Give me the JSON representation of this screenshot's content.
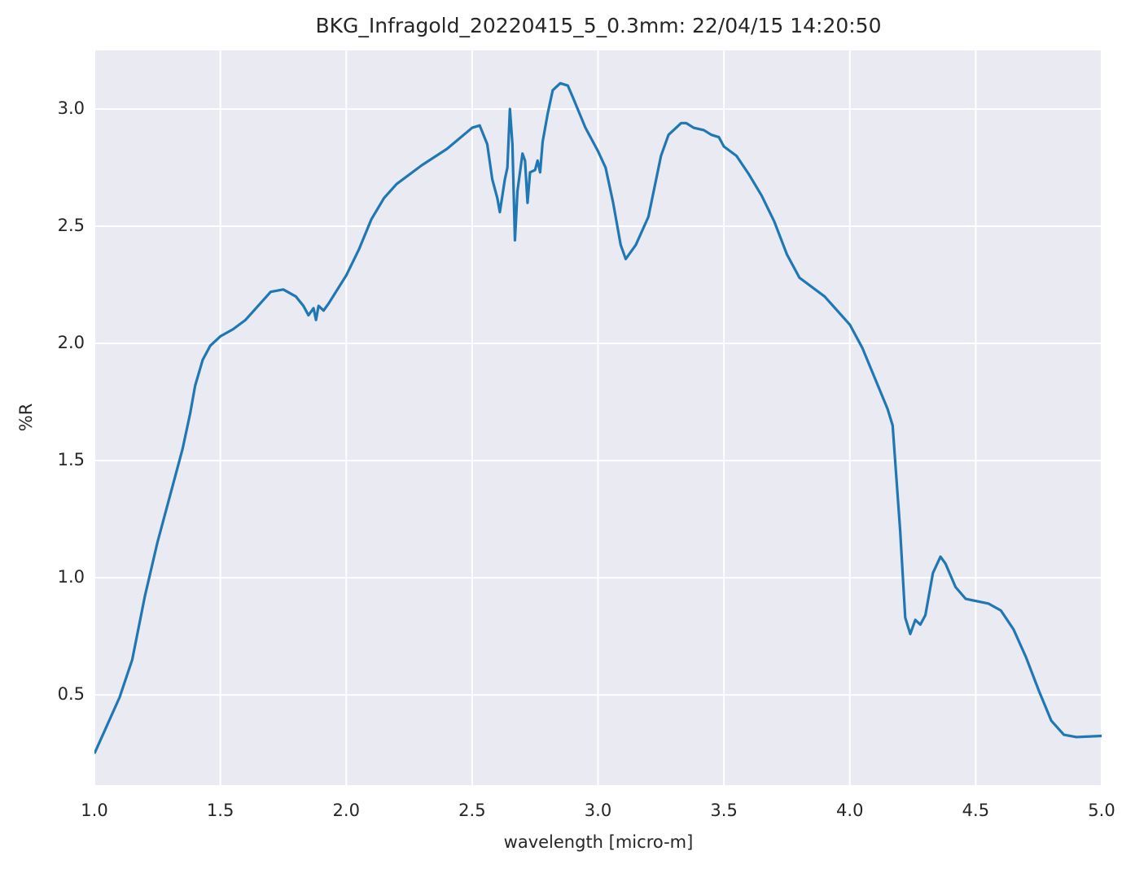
{
  "chart_data": {
    "type": "line",
    "title": "BKG_Infragold_20220415_5_0.3mm:  22/04/15 14:20:50",
    "x_label": "wavelength [micro-m]",
    "y_label": "%R",
    "xlim": [
      1.0,
      5.0
    ],
    "ylim": [
      0.115,
      3.25
    ],
    "xticks": [
      {
        "value": 1.0,
        "label": "1.0"
      },
      1.5,
      {
        "value": 2.0,
        "label": "2.0"
      },
      2.5,
      {
        "value": 3.0,
        "label": "3.0"
      },
      3.5,
      {
        "value": 4.0,
        "label": "4.0"
      },
      4.5,
      {
        "value": 5.0,
        "label": "5.0"
      }
    ],
    "yticks": [
      0.5,
      {
        "value": 1.0,
        "label": "1.0"
      },
      1.5,
      {
        "value": 2.0,
        "label": "2.0"
      },
      2.5,
      {
        "value": 3.0,
        "label": "3.0"
      }
    ],
    "grid": true,
    "series": [
      {
        "color": "#1f77b4",
        "x": [
          1.0,
          1.05,
          1.1,
          1.15,
          1.2,
          1.25,
          1.3,
          1.35,
          1.38,
          1.4,
          1.43,
          1.46,
          1.5,
          1.55,
          1.6,
          1.65,
          1.7,
          1.75,
          1.8,
          1.83,
          1.85,
          1.87,
          1.88,
          1.89,
          1.91,
          1.93,
          2.0,
          2.05,
          2.1,
          2.15,
          2.2,
          2.3,
          2.4,
          2.5,
          2.53,
          2.56,
          2.58,
          2.6,
          2.61,
          2.63,
          2.64,
          2.65,
          2.66,
          2.67,
          2.68,
          2.7,
          2.71,
          2.72,
          2.73,
          2.75,
          2.76,
          2.77,
          2.78,
          2.8,
          2.82,
          2.85,
          2.88,
          2.9,
          2.95,
          3.0,
          3.03,
          3.06,
          3.09,
          3.11,
          3.15,
          3.2,
          3.25,
          3.28,
          3.33,
          3.35,
          3.38,
          3.42,
          3.45,
          3.48,
          3.5,
          3.55,
          3.6,
          3.65,
          3.7,
          3.75,
          3.8,
          3.9,
          4.0,
          4.05,
          4.1,
          4.15,
          4.17,
          4.2,
          4.22,
          4.24,
          4.26,
          4.28,
          4.3,
          4.33,
          4.36,
          4.38,
          4.42,
          4.46,
          4.55,
          4.6,
          4.65,
          4.7,
          4.75,
          4.8,
          4.85,
          4.9,
          5.0
        ],
        "values": [
          0.25,
          0.37,
          0.49,
          0.65,
          0.92,
          1.15,
          1.35,
          1.55,
          1.7,
          1.82,
          1.93,
          1.99,
          2.03,
          2.06,
          2.1,
          2.16,
          2.22,
          2.23,
          2.2,
          2.16,
          2.12,
          2.15,
          2.1,
          2.16,
          2.14,
          2.17,
          2.29,
          2.4,
          2.53,
          2.62,
          2.68,
          2.76,
          2.83,
          2.92,
          2.93,
          2.85,
          2.7,
          2.62,
          2.56,
          2.7,
          2.75,
          3.0,
          2.85,
          2.44,
          2.65,
          2.81,
          2.78,
          2.6,
          2.73,
          2.74,
          2.78,
          2.73,
          2.86,
          2.98,
          3.08,
          3.11,
          3.1,
          3.05,
          2.92,
          2.82,
          2.75,
          2.6,
          2.42,
          2.36,
          2.42,
          2.54,
          2.8,
          2.89,
          2.94,
          2.94,
          2.92,
          2.91,
          2.89,
          2.88,
          2.84,
          2.8,
          2.72,
          2.63,
          2.52,
          2.38,
          2.28,
          2.2,
          2.08,
          1.98,
          1.85,
          1.72,
          1.65,
          1.2,
          0.83,
          0.76,
          0.82,
          0.8,
          0.84,
          1.02,
          1.09,
          1.06,
          0.96,
          0.91,
          0.89,
          0.86,
          0.78,
          0.66,
          0.52,
          0.39,
          0.33,
          0.32,
          0.325
        ]
      }
    ]
  }
}
